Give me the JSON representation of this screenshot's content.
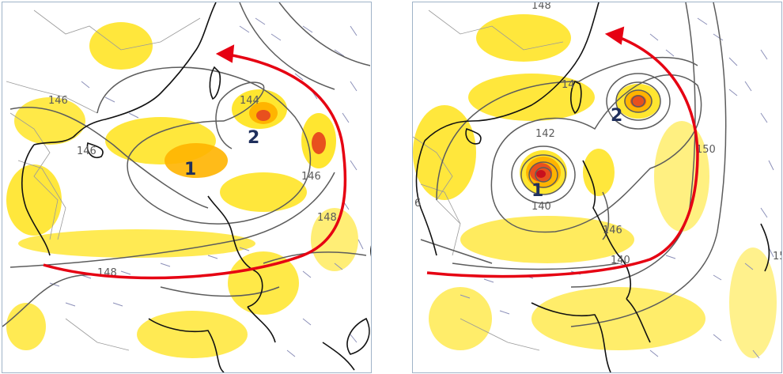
{
  "panels": [
    {
      "id": "left",
      "storm_labels": [
        "1",
        "2"
      ],
      "contour_labels": [
        "146",
        "146",
        "144",
        "146",
        "148",
        "148"
      ],
      "arrow_color": "#e60012"
    },
    {
      "id": "right",
      "storm_labels": [
        "1",
        "2"
      ],
      "contour_labels": [
        "148",
        "142",
        "14",
        "140",
        "150",
        "146",
        "140",
        "6",
        "15"
      ],
      "arrow_color": "#e60012"
    }
  ],
  "colors": {
    "precip_light": "#ffe31a",
    "precip_mid": "#ffb400",
    "precip_heavy": "#e8501e",
    "precip_core": "#c8101e",
    "contour": "#5c5c5c",
    "coastline": "#111111",
    "border": "#9a9a9a",
    "wind_barb": "#8b8fb8"
  }
}
